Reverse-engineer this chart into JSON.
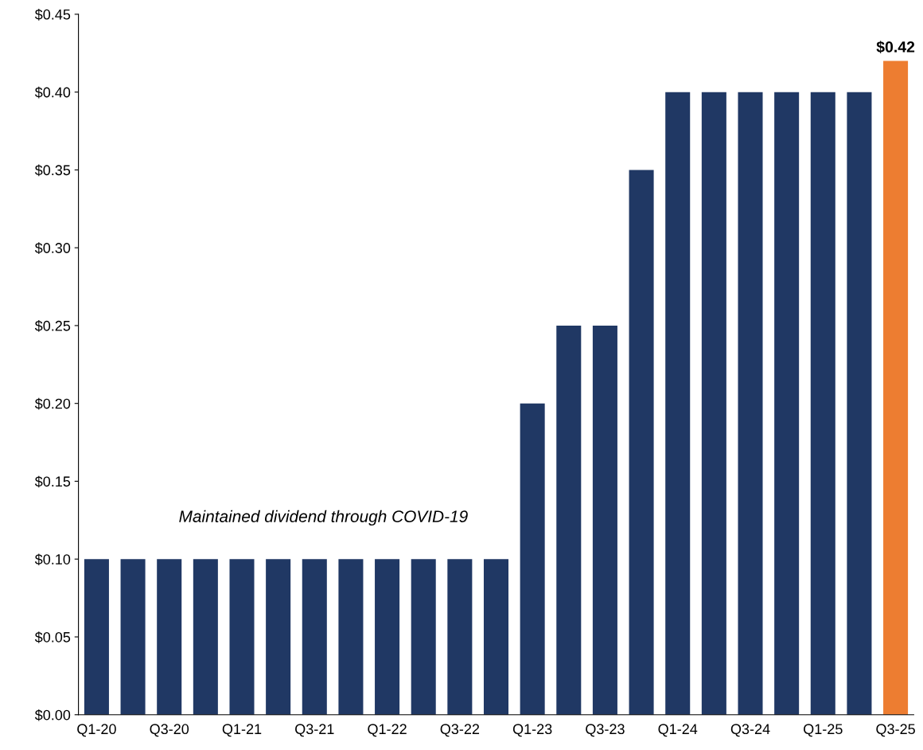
{
  "chart_data": {
    "type": "bar",
    "categories": [
      "Q1-20",
      null,
      "Q3-20",
      null,
      "Q1-21",
      null,
      "Q3-21",
      null,
      "Q1-22",
      null,
      "Q3-22",
      null,
      "Q1-23",
      null,
      "Q3-23",
      null,
      "Q1-24",
      null,
      "Q3-24",
      null,
      "Q1-25",
      null,
      "Q3-25"
    ],
    "values": [
      0.1,
      0.1,
      0.1,
      0.1,
      0.1,
      0.1,
      0.1,
      0.1,
      0.1,
      0.1,
      0.1,
      0.1,
      0.2,
      0.25,
      0.25,
      0.35,
      0.4,
      0.4,
      0.4,
      0.4,
      0.4,
      0.4,
      0.42
    ],
    "colors": [
      "#203864",
      "#203864",
      "#203864",
      "#203864",
      "#203864",
      "#203864",
      "#203864",
      "#203864",
      "#203864",
      "#203864",
      "#203864",
      "#203864",
      "#203864",
      "#203864",
      "#203864",
      "#203864",
      "#203864",
      "#203864",
      "#203864",
      "#203864",
      "#203864",
      "#203864",
      "#ed7d31"
    ],
    "value_labels": [
      null,
      null,
      null,
      null,
      null,
      null,
      null,
      null,
      null,
      null,
      null,
      null,
      null,
      null,
      null,
      null,
      null,
      null,
      null,
      null,
      null,
      null,
      "$0.42"
    ],
    "ylim": [
      0,
      0.45
    ],
    "yticks": [
      {
        "value": 0,
        "label": "$0.00"
      },
      {
        "value": 0.05,
        "label": "$0.05"
      },
      {
        "value": 0.1,
        "label": "$0.10"
      },
      {
        "value": 0.15,
        "label": "$0.15"
      },
      {
        "value": 0.2,
        "label": "$0.20"
      },
      {
        "value": 0.25,
        "label": "$0.25"
      },
      {
        "value": 0.3,
        "label": "$0.30"
      },
      {
        "value": 0.35,
        "label": "$0.35"
      },
      {
        "value": 0.4,
        "label": "$0.40"
      },
      {
        "value": 0.45,
        "label": "$0.45"
      }
    ],
    "grid": false,
    "annotations": [
      "Maintained dividend through COVID-19"
    ]
  }
}
